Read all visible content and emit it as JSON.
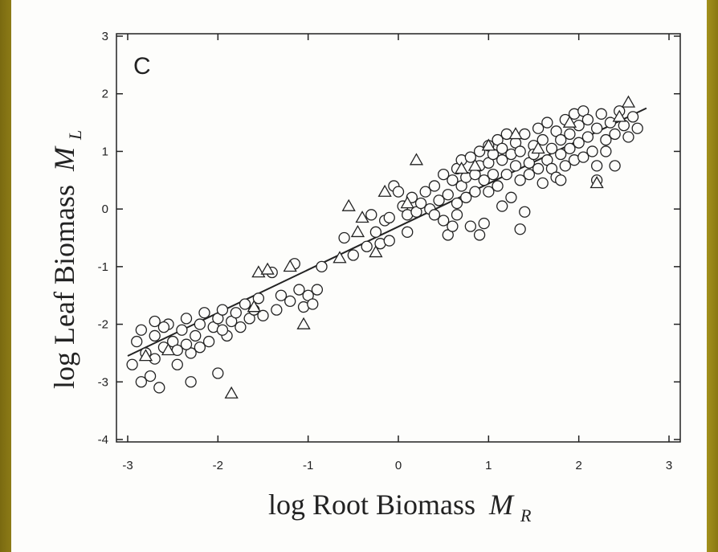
{
  "chart_data": {
    "type": "scatter",
    "panel_label": "C",
    "xlabel": "log Root Biomass",
    "xlabel_sub": "R",
    "ylabel": "log Leaf Biomass",
    "ylabel_sub": "L",
    "xlabel_symbol": "M",
    "ylabel_symbol": "M",
    "xlim": [
      -3,
      3
    ],
    "ylim": [
      -4,
      3
    ],
    "xticks": [
      -3,
      -2,
      -1,
      0,
      1,
      2,
      3
    ],
    "yticks": [
      -4,
      -3,
      -2,
      -1,
      0,
      1,
      2,
      3
    ],
    "grid": false,
    "fit_line": {
      "x": [
        -3.0,
        2.75
      ],
      "y": [
        -2.55,
        1.75
      ]
    },
    "series": [
      {
        "marker": "circle",
        "points": [
          [
            -2.95,
            -2.7
          ],
          [
            -2.9,
            -2.3
          ],
          [
            -2.85,
            -3.0
          ],
          [
            -2.8,
            -2.5
          ],
          [
            -2.75,
            -2.9
          ],
          [
            -2.7,
            -2.2
          ],
          [
            -2.7,
            -2.6
          ],
          [
            -2.65,
            -3.1
          ],
          [
            -2.6,
            -2.4
          ],
          [
            -2.55,
            -2.0
          ],
          [
            -2.5,
            -2.3
          ],
          [
            -2.45,
            -2.7
          ],
          [
            -2.4,
            -2.1
          ],
          [
            -2.35,
            -1.9
          ],
          [
            -2.3,
            -2.5
          ],
          [
            -2.25,
            -2.2
          ],
          [
            -2.2,
            -2.0
          ],
          [
            -2.15,
            -1.8
          ],
          [
            -2.1,
            -2.3
          ],
          [
            -2.05,
            -2.05
          ],
          [
            -2.0,
            -1.9
          ],
          [
            -1.95,
            -1.75
          ],
          [
            -1.9,
            -2.2
          ],
          [
            -1.85,
            -1.95
          ],
          [
            -1.8,
            -1.8
          ],
          [
            -1.75,
            -2.05
          ],
          [
            -1.7,
            -1.65
          ],
          [
            -1.65,
            -1.9
          ],
          [
            -1.6,
            -1.75
          ],
          [
            -1.55,
            -1.55
          ],
          [
            -1.5,
            -1.85
          ],
          [
            -2.3,
            -3.0
          ],
          [
            -2.0,
            -2.85
          ],
          [
            -2.85,
            -2.1
          ],
          [
            -2.6,
            -2.05
          ],
          [
            -2.45,
            -2.45
          ],
          [
            -2.2,
            -2.4
          ],
          [
            -2.7,
            -1.95
          ],
          [
            -2.35,
            -2.35
          ],
          [
            -1.95,
            -2.1
          ],
          [
            -1.4,
            -1.1
          ],
          [
            -1.35,
            -1.75
          ],
          [
            -1.3,
            -1.5
          ],
          [
            -1.2,
            -1.6
          ],
          [
            -1.15,
            -0.95
          ],
          [
            -1.1,
            -1.4
          ],
          [
            -1.05,
            -1.7
          ],
          [
            -1.0,
            -1.5
          ],
          [
            -0.95,
            -1.65
          ],
          [
            -0.9,
            -1.4
          ],
          [
            -0.85,
            -1.0
          ],
          [
            -0.3,
            -0.1
          ],
          [
            -0.25,
            -0.4
          ],
          [
            -0.2,
            -0.6
          ],
          [
            -0.15,
            -0.2
          ],
          [
            -0.1,
            -0.55
          ],
          [
            -0.05,
            0.4
          ],
          [
            0.0,
            0.3
          ],
          [
            0.05,
            0.05
          ],
          [
            0.1,
            -0.1
          ],
          [
            0.15,
            0.2
          ],
          [
            0.2,
            -0.05
          ],
          [
            0.25,
            0.1
          ],
          [
            0.3,
            0.3
          ],
          [
            0.35,
            0.0
          ],
          [
            0.4,
            0.4
          ],
          [
            0.45,
            0.15
          ],
          [
            0.5,
            0.6
          ],
          [
            0.5,
            -0.2
          ],
          [
            0.55,
            -0.45
          ],
          [
            0.55,
            0.25
          ],
          [
            0.6,
            0.5
          ],
          [
            0.6,
            -0.3
          ],
          [
            0.65,
            0.7
          ],
          [
            0.65,
            0.1
          ],
          [
            0.7,
            0.4
          ],
          [
            0.7,
            0.85
          ],
          [
            0.75,
            0.2
          ],
          [
            0.75,
            0.55
          ],
          [
            0.8,
            0.9
          ],
          [
            0.8,
            -0.3
          ],
          [
            0.85,
            0.6
          ],
          [
            0.85,
            0.3
          ],
          [
            0.9,
            1.0
          ],
          [
            0.9,
            0.75
          ],
          [
            0.9,
            -0.45
          ],
          [
            0.95,
            0.5
          ],
          [
            1.0,
            1.1
          ],
          [
            1.0,
            0.8
          ],
          [
            1.0,
            0.3
          ],
          [
            1.05,
            0.95
          ],
          [
            1.05,
            0.6
          ],
          [
            1.1,
            1.2
          ],
          [
            1.1,
            0.4
          ],
          [
            1.15,
            0.85
          ],
          [
            1.15,
            1.05
          ],
          [
            1.2,
            0.6
          ],
          [
            1.2,
            1.3
          ],
          [
            1.25,
            0.2
          ],
          [
            1.25,
            0.95
          ],
          [
            1.3,
            0.75
          ],
          [
            1.3,
            1.15
          ],
          [
            1.35,
            0.5
          ],
          [
            1.35,
            1.0
          ],
          [
            1.4,
            1.3
          ],
          [
            1.4,
            -0.05
          ],
          [
            1.45,
            0.8
          ],
          [
            1.45,
            0.6
          ],
          [
            1.5,
            1.1
          ],
          [
            1.5,
            0.95
          ],
          [
            1.55,
            0.7
          ],
          [
            1.55,
            1.4
          ],
          [
            1.6,
            0.45
          ],
          [
            1.6,
            1.2
          ],
          [
            1.65,
            0.85
          ],
          [
            1.65,
            1.5
          ],
          [
            1.7,
            1.05
          ],
          [
            1.7,
            0.7
          ],
          [
            1.75,
            1.35
          ],
          [
            1.75,
            0.55
          ],
          [
            1.8,
            1.2
          ],
          [
            1.8,
            0.95
          ],
          [
            1.85,
            1.55
          ],
          [
            1.85,
            0.75
          ],
          [
            1.9,
            1.3
          ],
          [
            1.9,
            1.05
          ],
          [
            1.95,
            0.85
          ],
          [
            1.95,
            1.65
          ],
          [
            2.0,
            1.15
          ],
          [
            2.0,
            1.45
          ],
          [
            2.05,
            0.9
          ],
          [
            2.05,
            1.7
          ],
          [
            2.1,
            1.25
          ],
          [
            2.1,
            1.55
          ],
          [
            2.15,
            1.0
          ],
          [
            2.2,
            1.4
          ],
          [
            2.2,
            0.75
          ],
          [
            2.25,
            1.65
          ],
          [
            2.3,
            1.2
          ],
          [
            2.3,
            1.0
          ],
          [
            2.35,
            1.5
          ],
          [
            2.4,
            1.3
          ],
          [
            2.45,
            1.7
          ],
          [
            2.5,
            1.45
          ],
          [
            2.55,
            1.25
          ],
          [
            2.6,
            1.6
          ],
          [
            2.65,
            1.4
          ],
          [
            2.2,
            0.5
          ],
          [
            2.4,
            0.75
          ],
          [
            1.8,
            0.5
          ],
          [
            -0.6,
            -0.5
          ],
          [
            -0.5,
            -0.8
          ],
          [
            -0.35,
            -0.65
          ],
          [
            -0.1,
            -0.15
          ],
          [
            0.1,
            -0.4
          ],
          [
            0.4,
            -0.1
          ],
          [
            0.65,
            -0.1
          ],
          [
            0.95,
            -0.25
          ],
          [
            1.15,
            0.05
          ],
          [
            1.35,
            -0.35
          ]
        ]
      },
      {
        "marker": "triangle",
        "points": [
          [
            -2.8,
            -2.55
          ],
          [
            -2.55,
            -2.45
          ],
          [
            -1.85,
            -3.2
          ],
          [
            -1.55,
            -1.1
          ],
          [
            -1.45,
            -1.05
          ],
          [
            -1.2,
            -1.0
          ],
          [
            -1.05,
            -2.0
          ],
          [
            -0.65,
            -0.85
          ],
          [
            -0.55,
            0.05
          ],
          [
            -0.45,
            -0.4
          ],
          [
            -0.4,
            -0.15
          ],
          [
            -0.15,
            0.3
          ],
          [
            0.2,
            0.85
          ],
          [
            0.1,
            0.1
          ],
          [
            0.7,
            0.7
          ],
          [
            1.3,
            1.3
          ],
          [
            1.9,
            1.5
          ],
          [
            2.2,
            0.45
          ],
          [
            2.45,
            1.6
          ],
          [
            2.55,
            1.85
          ],
          [
            1.55,
            1.05
          ],
          [
            1.0,
            1.1
          ],
          [
            0.85,
            0.75
          ],
          [
            -0.25,
            -0.75
          ],
          [
            -1.6,
            -1.7
          ]
        ]
      }
    ]
  }
}
